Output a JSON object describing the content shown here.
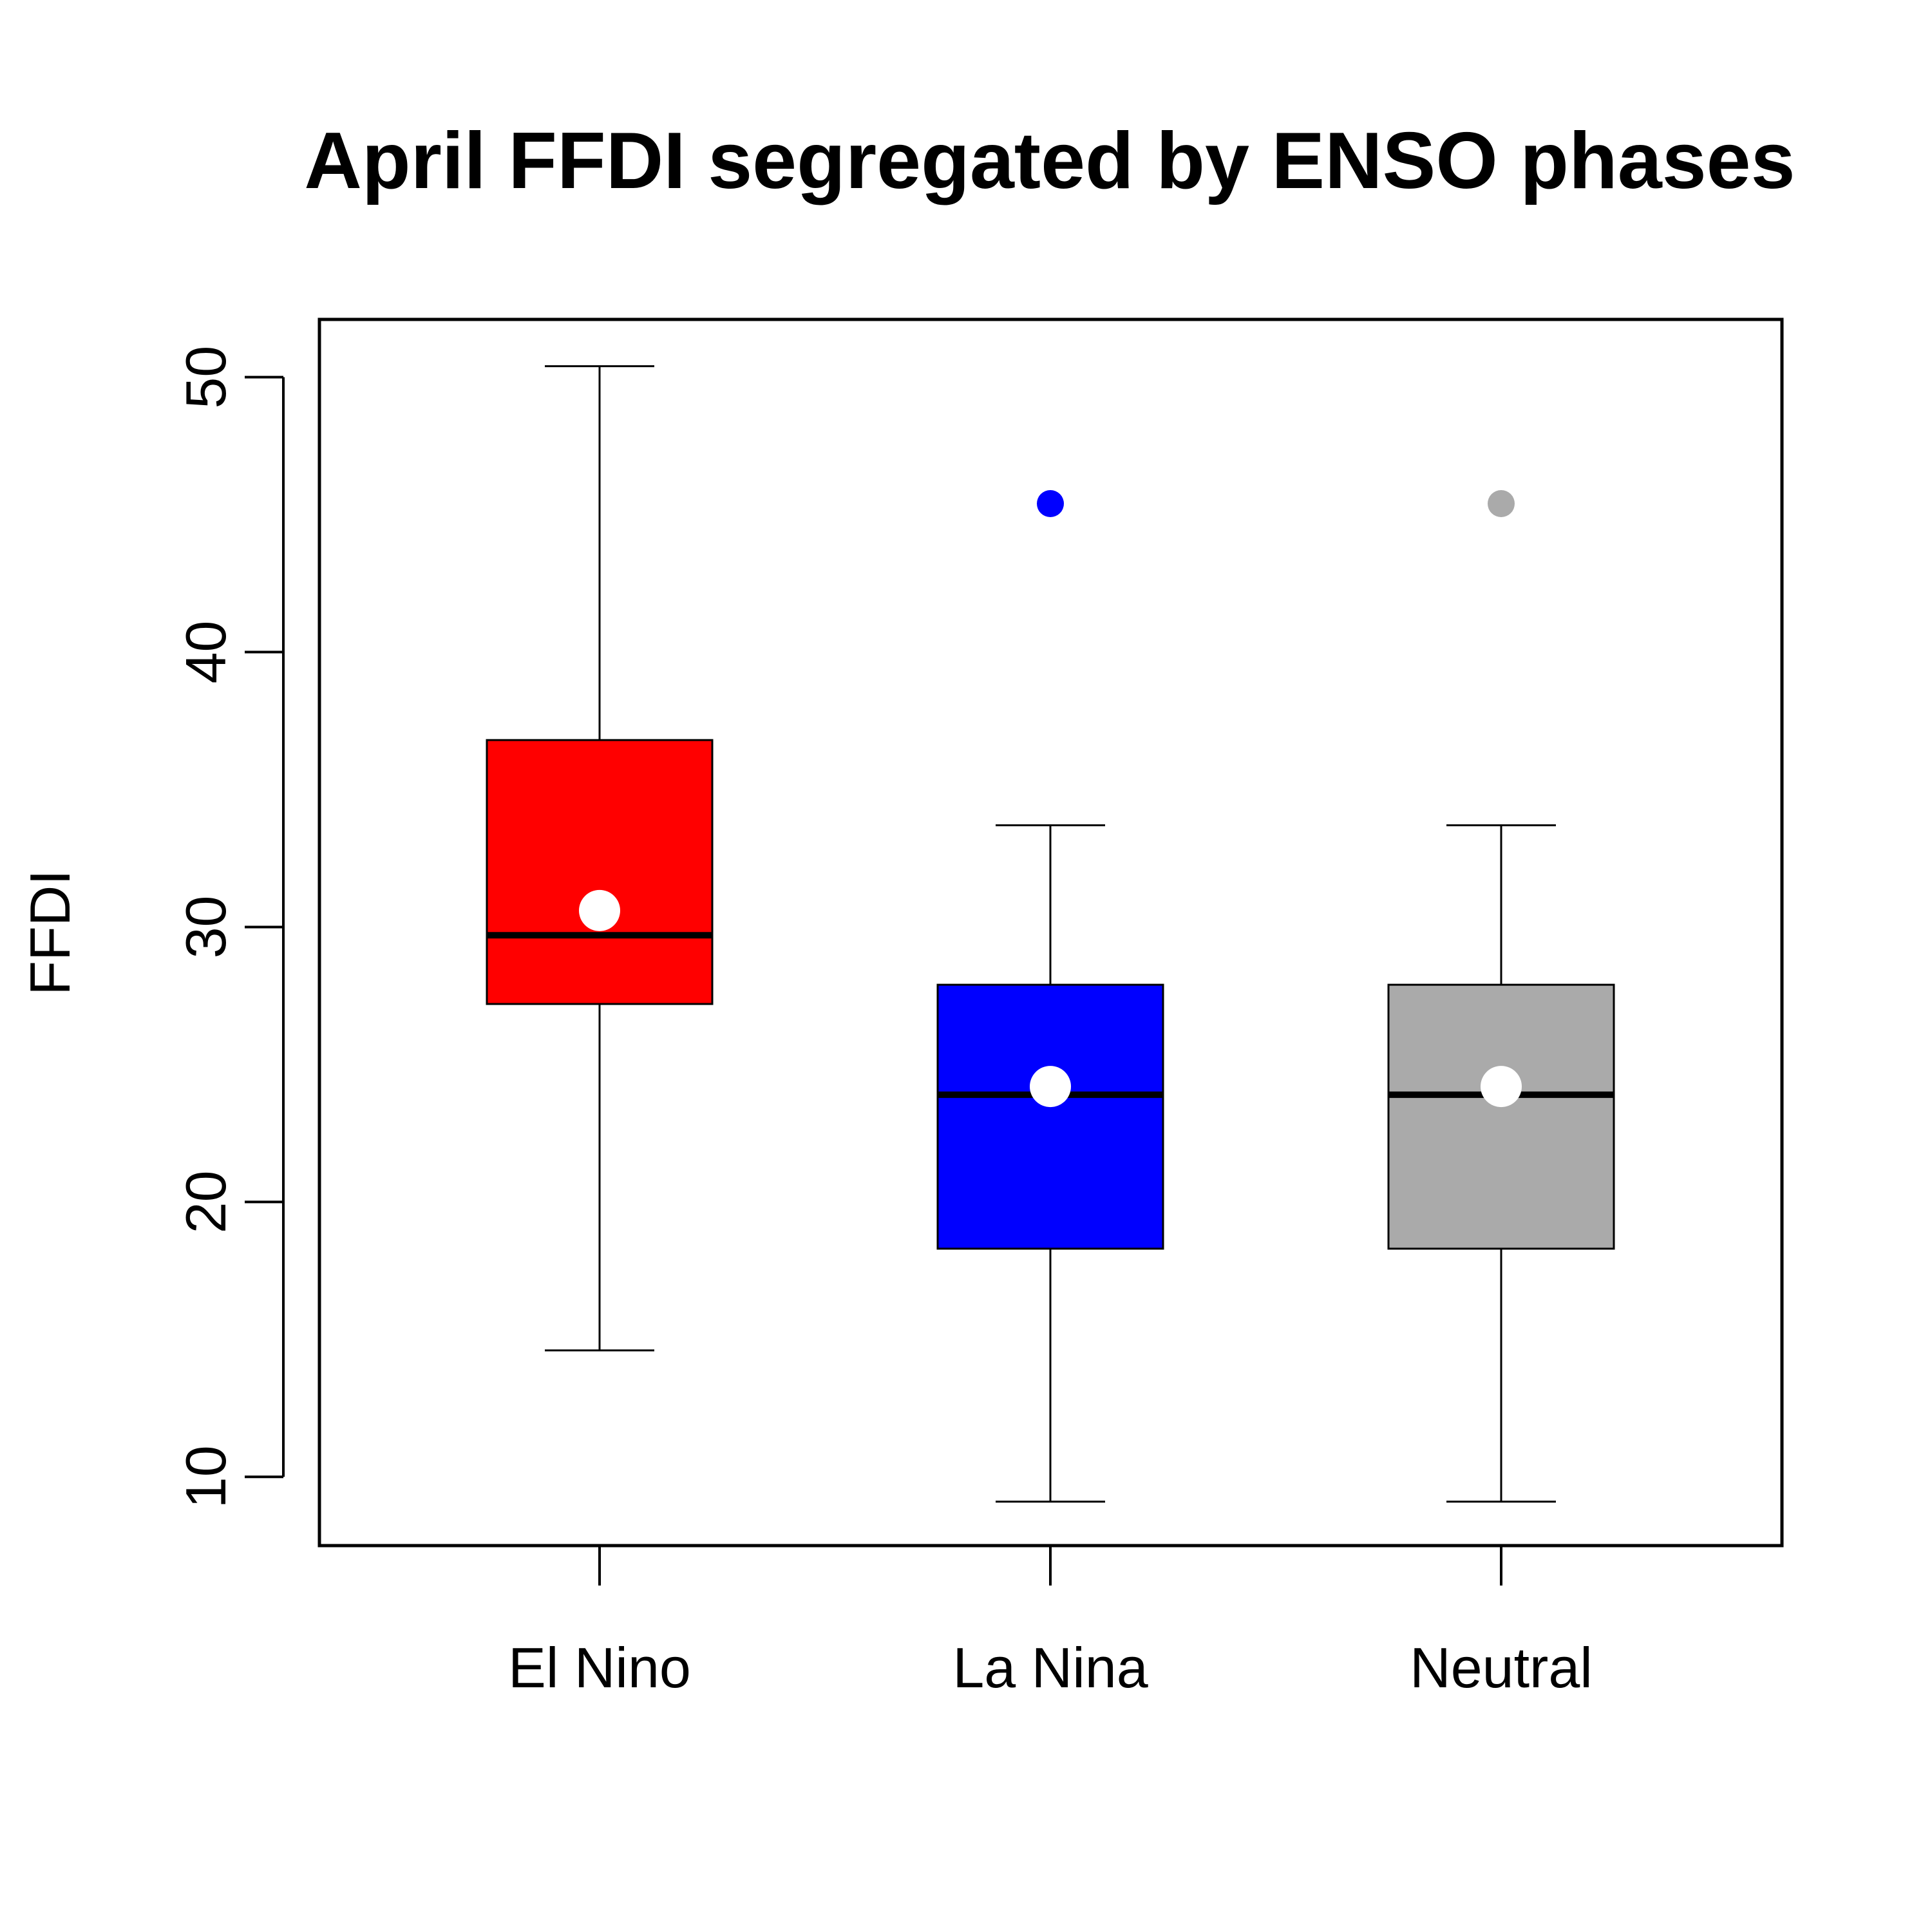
{
  "chart_data": {
    "type": "box",
    "title": "April FFDI segregated by ENSO phases",
    "xlabel": "",
    "ylabel": "FFDI",
    "ylim": [
      7.5,
      52.1
    ],
    "yticks": [
      10,
      20,
      30,
      40,
      50
    ],
    "grid": false,
    "legend": "none",
    "categories": [
      "El Nino",
      "La Nina",
      "Neutral"
    ],
    "colors": [
      "#ff0000",
      "#0000ff",
      "#aaaaaa"
    ],
    "mean_marker_color": "#ffffff",
    "boxes": [
      {
        "category": "El Nino",
        "whisker_low": 14.6,
        "q1": 27.2,
        "median": 29.7,
        "q3": 36.8,
        "whisker_high": 50.4,
        "mean": 30.6,
        "outliers": []
      },
      {
        "category": "La Nina",
        "whisker_low": 9.1,
        "q1": 18.3,
        "median": 23.9,
        "q3": 27.9,
        "whisker_high": 33.7,
        "mean": 24.2,
        "outliers": [
          45.4
        ]
      },
      {
        "category": "Neutral",
        "whisker_low": 9.1,
        "q1": 18.3,
        "median": 23.9,
        "q3": 27.9,
        "whisker_high": 33.7,
        "mean": 24.2,
        "outliers": [
          45.4
        ]
      }
    ]
  }
}
